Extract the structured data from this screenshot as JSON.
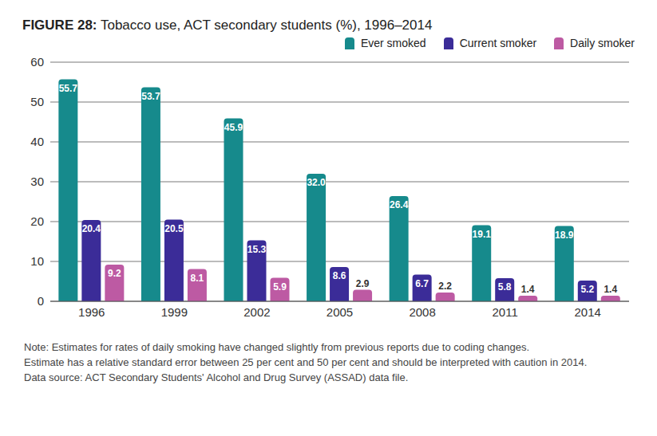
{
  "chart_data": {
    "type": "bar",
    "title": "FIGURE 28: Tobacco use, ACT secondary students (%), 1996–2014",
    "categories": [
      "1996",
      "1999",
      "2002",
      "2005",
      "2008",
      "2011",
      "2014"
    ],
    "series": [
      {
        "name": "Ever smoked",
        "color": "#168a8c",
        "values": [
          55.7,
          53.7,
          45.9,
          32.0,
          26.4,
          19.1,
          18.9
        ],
        "value_labels": [
          "55.7",
          "53.7",
          "45.9",
          "32.0",
          "26.4",
          "19.1",
          "18.9"
        ]
      },
      {
        "name": "Current smoker",
        "color": "#3b2c98",
        "values": [
          20.4,
          20.5,
          15.3,
          8.6,
          6.7,
          5.8,
          5.2
        ]
      },
      {
        "name": "Daily smoker",
        "color": "#bd5aa3",
        "values": [
          9.2,
          8.1,
          5.9,
          2.9,
          2.2,
          1.4,
          1.4
        ]
      }
    ],
    "ylim": [
      0,
      60
    ],
    "yticks": [
      0,
      10,
      20,
      30,
      40,
      50,
      60
    ],
    "grid": true,
    "legend": "top-right",
    "data_labels": true,
    "annotations": [
      "Note: Estimates for rates of daily smoking have changed slightly from previous reports due to coding changes.",
      "Estimate has a relative standard error between 25 per cent and 50 per cent and should be interpreted with caution in 2014.",
      "Data source: ACT Secondary Students' Alcohol and Drug Survey (ASSAD) data file."
    ]
  }
}
